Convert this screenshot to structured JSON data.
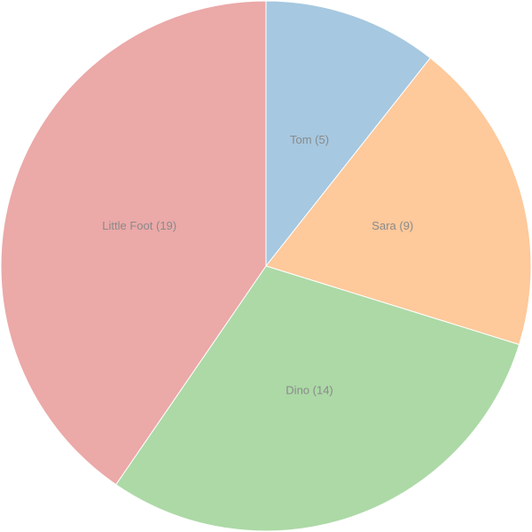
{
  "chart_data": {
    "type": "pie",
    "title": "",
    "start_angle_deg": 0,
    "direction": "clockwise",
    "slices": [
      {
        "name": "Tom",
        "value": 5,
        "label": "Tom (5)",
        "color": "#a6c8e0"
      },
      {
        "name": "Sara",
        "value": 9,
        "label": "Sara (9)",
        "color": "#fec99b"
      },
      {
        "name": "Dino",
        "value": 14,
        "label": "Dino (14)",
        "color": "#acd9a6"
      },
      {
        "name": "Little Foot",
        "value": 19,
        "label": "Little Foot (19)",
        "color": "#eba9a8"
      }
    ]
  }
}
